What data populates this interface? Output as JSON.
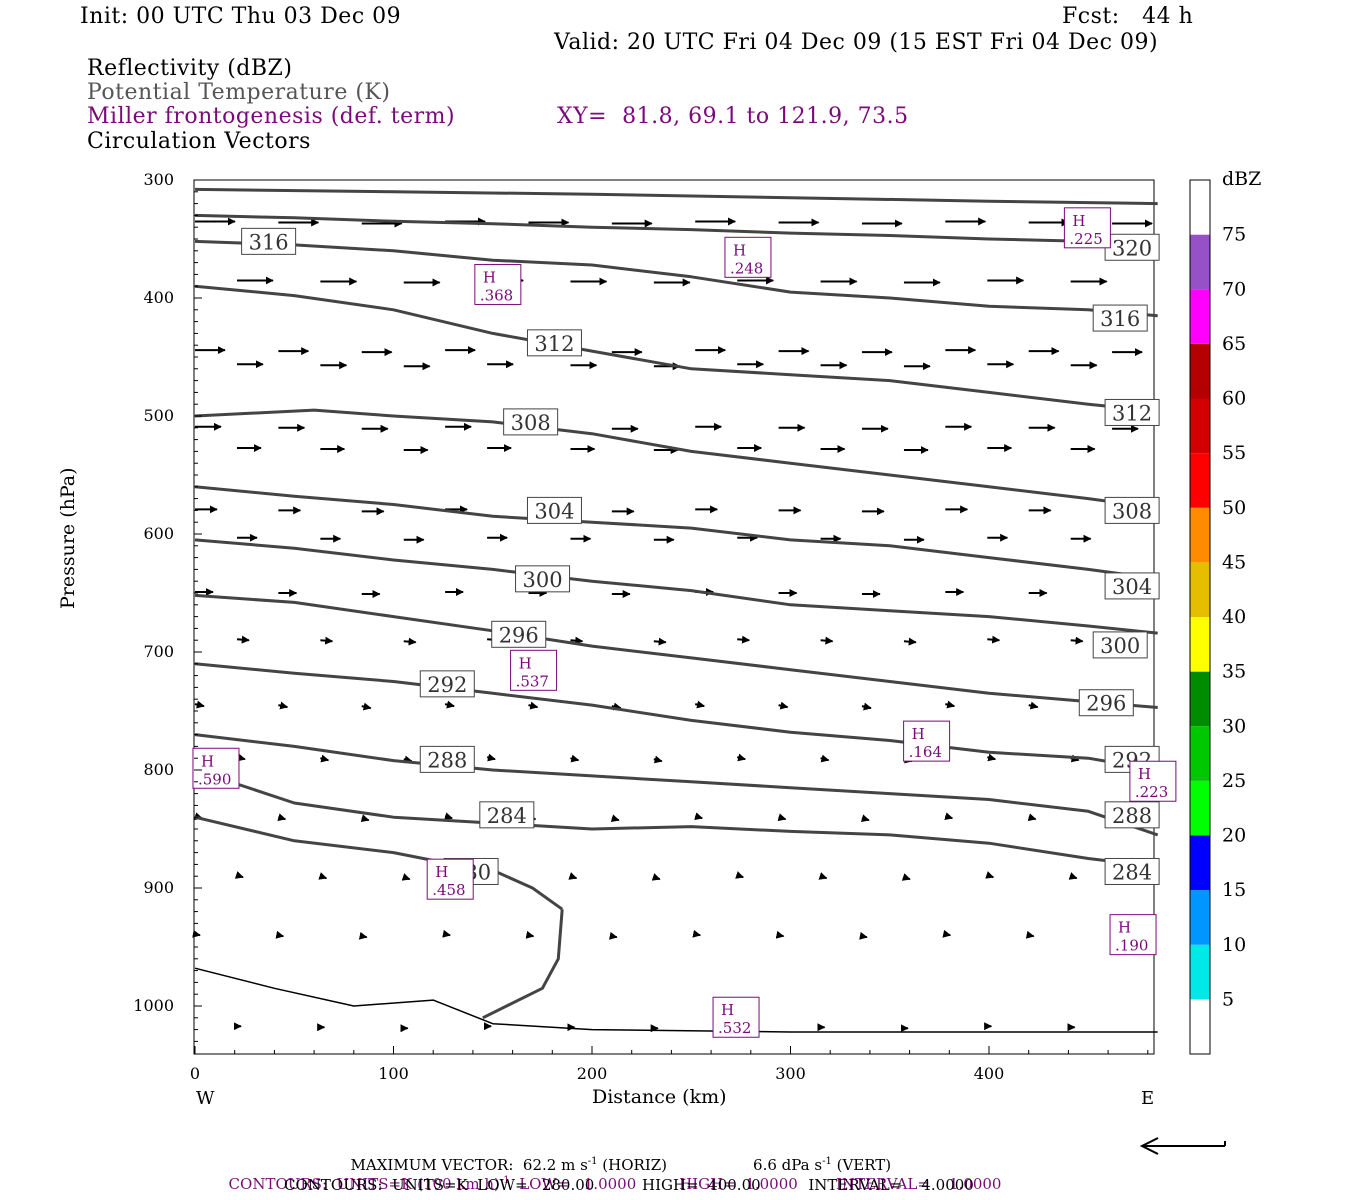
{
  "header": {
    "init": "Init: 00 UTC Thu 03 Dec 09",
    "fcst": "Fcst:   44 h",
    "valid": "Valid: 20 UTC Fri 04 Dec 09 (15 EST Fri 04 Dec 09)",
    "field1": "Reflectivity (dBZ)",
    "field2": "Potential Temperature (K)",
    "field3": "Miller frontogenesis (def. term)",
    "xy": "XY=  81.8, 69.1 to 121.9, 73.5",
    "field4": "Circulation Vectors"
  },
  "axes": {
    "ylabel": "Pressure (hPa)",
    "xlabel": "Distance (km)",
    "west": "W",
    "east": "E"
  },
  "colorbar": {
    "unit": "dBZ",
    "levels": [
      "75",
      "70",
      "65",
      "60",
      "55",
      "50",
      "45",
      "40",
      "35",
      "30",
      "25",
      "20",
      "15",
      "10",
      "5"
    ],
    "colors": [
      "#ffffff",
      "#00e8e8",
      "#0096ff",
      "#0000ff",
      "#00ff00",
      "#00c800",
      "#008c00",
      "#ffff00",
      "#e6be00",
      "#ff8c00",
      "#ff0000",
      "#d20000",
      "#b40000",
      "#ff00ff",
      "#9650c8",
      "#ffffff"
    ]
  },
  "footer": {
    "vector": "MAXIMUM VECTOR:  62.2 m s",
    "vector_sup": "-1",
    "vector_mid": " (HORIZ)",
    "vector_vert": "6.6 dPa s",
    "vector_vert_sup": "-1",
    "vector_vert_end": " (VERT)",
    "contours1_a": "CONTOURS:  UNITS=K (100 km h)",
    "contours1_sup": "-1",
    "contours1_b": "  LOW=   1.0000         HIGH=  1.0000        INTERVAL=    1.0000",
    "contours2": "CONTOURS:  UNITS=K  LOW=   280.00          HIGH=  400.00          INTERVAL=    4.0000"
  },
  "chart_data": {
    "type": "line",
    "x": [
      0,
      50,
      100,
      150,
      200,
      250,
      300,
      350,
      400,
      450,
      485
    ],
    "xlim": [
      0,
      485
    ],
    "ylim": [
      1040,
      300
    ],
    "xticks": [
      0,
      100,
      200,
      300,
      400
    ],
    "yticks": [
      300,
      400,
      500,
      600,
      700,
      800,
      900,
      1000
    ],
    "series": [
      {
        "name": "280",
        "x": [
          0,
          50,
          100,
          130,
          150,
          170,
          185
        ],
        "values": [
          840,
          860,
          870,
          880,
          885,
          900,
          918
        ]
      },
      {
        "name": "284",
        "x": [
          0,
          50,
          100,
          150,
          200,
          250,
          300,
          350,
          400,
          450,
          485
        ],
        "values": [
          800,
          828,
          840,
          845,
          850,
          848,
          852,
          855,
          862,
          875,
          882
        ]
      },
      {
        "name": "288",
        "x": [
          0,
          50,
          100,
          150,
          200,
          250,
          300,
          350,
          400,
          450,
          485
        ],
        "values": [
          770,
          780,
          792,
          800,
          805,
          810,
          815,
          820,
          825,
          835,
          855
        ]
      },
      {
        "name": "292",
        "x": [
          0,
          50,
          100,
          150,
          200,
          250,
          300,
          350,
          400,
          450,
          485
        ],
        "values": [
          710,
          718,
          725,
          735,
          745,
          758,
          768,
          775,
          785,
          790,
          800
        ]
      },
      {
        "name": "296",
        "x": [
          0,
          50,
          100,
          150,
          200,
          250,
          300,
          350,
          400,
          450,
          485
        ],
        "values": [
          652,
          658,
          670,
          682,
          695,
          705,
          715,
          725,
          735,
          742,
          747
        ]
      },
      {
        "name": "300",
        "x": [
          0,
          50,
          100,
          150,
          200,
          250,
          300,
          350,
          400,
          450,
          485
        ],
        "values": [
          605,
          612,
          622,
          630,
          640,
          648,
          660,
          665,
          670,
          678,
          684
        ]
      },
      {
        "name": "304",
        "x": [
          0,
          50,
          100,
          150,
          200,
          250,
          300,
          350,
          400,
          450,
          485
        ],
        "values": [
          560,
          568,
          575,
          585,
          590,
          595,
          605,
          610,
          620,
          630,
          638
        ]
      },
      {
        "name": "308",
        "x": [
          0,
          60,
          100,
          150,
          200,
          250,
          300,
          350,
          400,
          450,
          485
        ],
        "values": [
          500,
          495,
          500,
          505,
          515,
          530,
          540,
          550,
          560,
          570,
          578
        ]
      },
      {
        "name": "312",
        "x": [
          0,
          50,
          100,
          150,
          200,
          250,
          300,
          350,
          400,
          450,
          485
        ],
        "values": [
          390,
          398,
          410,
          430,
          445,
          460,
          465,
          470,
          480,
          490,
          496
        ]
      },
      {
        "name": "316",
        "x": [
          0,
          50,
          100,
          150,
          200,
          250,
          300,
          350,
          400,
          450,
          485
        ],
        "values": [
          352,
          355,
          360,
          368,
          372,
          382,
          395,
          400,
          407,
          410,
          415
        ]
      },
      {
        "name": "320",
        "x": [
          0,
          50,
          100,
          150,
          200,
          250,
          300,
          350,
          400,
          450,
          485
        ],
        "values": [
          330,
          332,
          335,
          337,
          340,
          342,
          345,
          347,
          350,
          352,
          355
        ]
      },
      {
        "name": "324",
        "x": [
          0,
          100,
          200,
          300,
          400,
          485
        ],
        "values": [
          308,
          310,
          312,
          315,
          318,
          320
        ]
      },
      {
        "name": "ground",
        "x": [
          0,
          40,
          80,
          120,
          150,
          200,
          300,
          400,
          485
        ],
        "values": [
          968,
          985,
          1000,
          995,
          1015,
          1020,
          1022,
          1022,
          1022
        ]
      }
    ],
    "contour_labels": [
      {
        "text": "316",
        "x": 25,
        "y": 352
      },
      {
        "text": "320",
        "x": 460,
        "y": 357
      },
      {
        "text": "316",
        "x": 454,
        "y": 417
      },
      {
        "text": "312",
        "x": 169,
        "y": 438
      },
      {
        "text": "312",
        "x": 460,
        "y": 497
      },
      {
        "text": "308",
        "x": 157,
        "y": 505
      },
      {
        "text": "308",
        "x": 460,
        "y": 580
      },
      {
        "text": "304",
        "x": 169,
        "y": 580
      },
      {
        "text": "304",
        "x": 460,
        "y": 644
      },
      {
        "text": "300",
        "x": 163,
        "y": 638
      },
      {
        "text": "300",
        "x": 454,
        "y": 694
      },
      {
        "text": "296",
        "x": 151,
        "y": 685
      },
      {
        "text": "296",
        "x": 447,
        "y": 743
      },
      {
        "text": "292",
        "x": 115,
        "y": 727
      },
      {
        "text": "292",
        "x": 460,
        "y": 791
      },
      {
        "text": "288",
        "x": 115,
        "y": 791
      },
      {
        "text": "288",
        "x": 460,
        "y": 838
      },
      {
        "text": "284",
        "x": 145,
        "y": 838
      },
      {
        "text": "284",
        "x": 460,
        "y": 886
      },
      {
        "text": "280",
        "x": 127,
        "y": 886
      }
    ],
    "highs": [
      {
        "label": "H",
        "value": ".225",
        "x": 441,
        "y": 349
      },
      {
        "label": "H",
        "value": ".248",
        "x": 270,
        "y": 374
      },
      {
        "label": "H",
        "value": ".368",
        "x": 144,
        "y": 397
      },
      {
        "label": "H",
        "value": ".537",
        "x": 162,
        "y": 724
      },
      {
        "label": "H",
        "value": ".590",
        "x": 2,
        "y": 807
      },
      {
        "label": "H",
        "value": ".164",
        "x": 360,
        "y": 784
      },
      {
        "label": "H",
        "value": ".223",
        "x": 474,
        "y": 818
      },
      {
        "label": "H",
        "value": ".458",
        "x": 120,
        "y": 901
      },
      {
        "label": "H",
        "value": ".190",
        "x": 464,
        "y": 948
      },
      {
        "label": "H",
        "value": ".532",
        "x": 264,
        "y": 1018
      }
    ]
  }
}
